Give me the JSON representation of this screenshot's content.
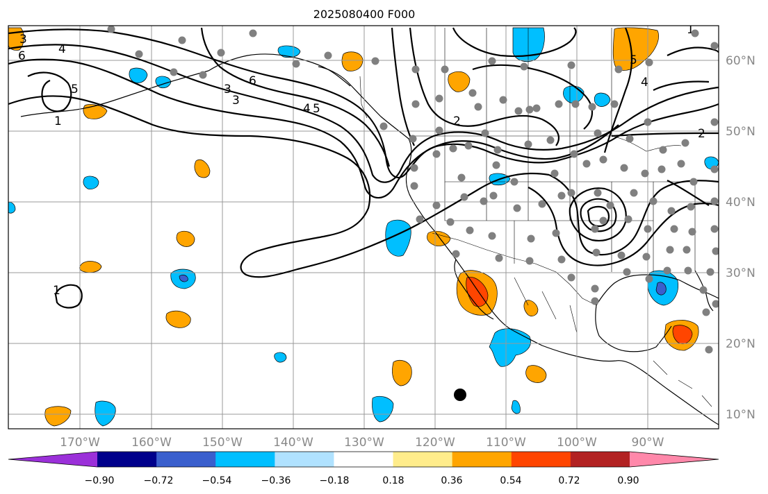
{
  "title": "2025080400 F000",
  "map": {
    "lon_labels": [
      "170°W",
      "160°W",
      "150°W",
      "140°W",
      "130°W",
      "120°W",
      "110°W",
      "100°W",
      "90°W"
    ],
    "lat_labels": [
      "60°N",
      "50°N",
      "40°N",
      "30°N",
      "20°N",
      "10°N"
    ],
    "contour_labels": [
      "3",
      "4",
      "6",
      "5",
      "3",
      "3",
      "6",
      "4",
      "5",
      "1",
      "2",
      "1",
      "2",
      "4",
      "5",
      "1"
    ],
    "grid": true
  },
  "colorbar": {
    "tick_labels": [
      "−0.90",
      "−0.72",
      "−0.54",
      "−0.36",
      "−0.18",
      "0.18",
      "0.36",
      "0.54",
      "0.72",
      "0.90"
    ],
    "colors": [
      "#9b30d9",
      "#00008b",
      "#3a5fcd",
      "#00bfff",
      "#b0e2ff",
      "#ffffff",
      "#ffec8b",
      "#ffa500",
      "#ff4500",
      "#b22222",
      "#ff88aa"
    ]
  },
  "colors": {
    "orange": "#ffa500",
    "red": "#ff4500",
    "cyan": "#00bfff",
    "blue": "#3a5fcd",
    "gray_dot": "#808080",
    "grid": "#999999"
  }
}
